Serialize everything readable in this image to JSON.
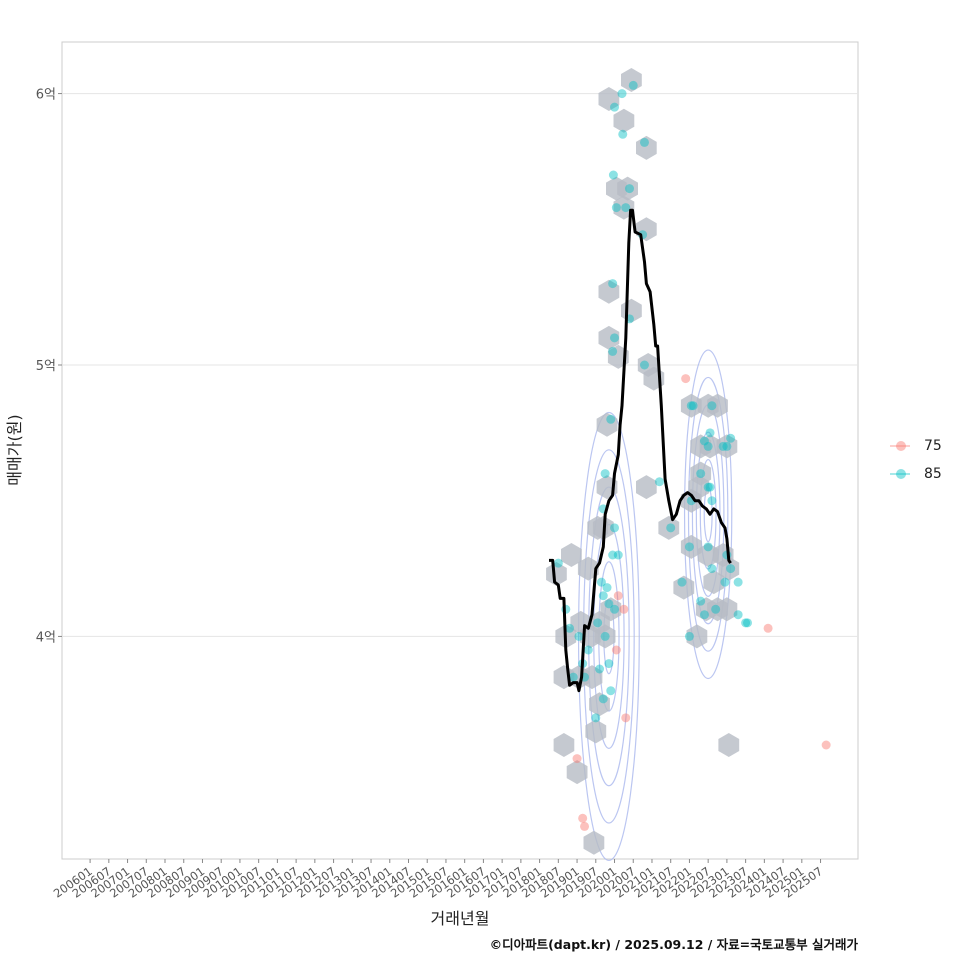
{
  "chart_data": {
    "type": "scatter",
    "title": "",
    "xlabel": "거래년월",
    "ylabel": "매매가(원)",
    "x_ticks": [
      "200601",
      "200607",
      "200701",
      "200707",
      "200801",
      "200807",
      "200901",
      "200907",
      "201001",
      "201007",
      "201101",
      "201107",
      "201201",
      "201207",
      "201301",
      "201307",
      "201401",
      "201407",
      "201501",
      "201507",
      "201601",
      "201607",
      "201701",
      "201707",
      "201801",
      "201807",
      "201901",
      "201907",
      "202001",
      "202007",
      "202101",
      "202107",
      "202201",
      "202207",
      "202301",
      "202307",
      "202401",
      "202407",
      "202501",
      "202507"
    ],
    "y_ticks": [
      {
        "value": 4.0,
        "label": "4억"
      },
      {
        "value": 5.0,
        "label": "5억"
      },
      {
        "value": 6.0,
        "label": "6억"
      }
    ],
    "xlim": [
      2005.25,
      2026.5
    ],
    "ylim": [
      3.18,
      6.19
    ],
    "grid": true,
    "legend_position": "right",
    "series": [
      {
        "name": "75",
        "color": "#f8766d",
        "points": [
          [
            2019.15,
            3.33
          ],
          [
            2019.2,
            3.3
          ],
          [
            2019.0,
            3.55
          ],
          [
            2020.3,
            3.7
          ],
          [
            2020.1,
            4.15
          ],
          [
            2020.25,
            4.1
          ],
          [
            2021.9,
            4.95
          ],
          [
            2024.1,
            4.03
          ],
          [
            2025.65,
            3.6
          ],
          [
            2020.05,
            3.95
          ]
        ]
      },
      {
        "name": "85",
        "color": "#00bfc4",
        "points": [
          [
            2018.5,
            4.27
          ],
          [
            2018.7,
            4.1
          ],
          [
            2018.8,
            4.03
          ],
          [
            2018.9,
            3.85
          ],
          [
            2019.05,
            4.0
          ],
          [
            2019.15,
            3.9
          ],
          [
            2019.2,
            3.85
          ],
          [
            2019.3,
            3.95
          ],
          [
            2019.5,
            3.7
          ],
          [
            2019.6,
            3.88
          ],
          [
            2019.7,
            3.77
          ],
          [
            2019.75,
            4.0
          ],
          [
            2019.85,
            3.9
          ],
          [
            2019.9,
            3.8
          ],
          [
            2019.55,
            4.05
          ],
          [
            2019.65,
            4.2
          ],
          [
            2019.7,
            4.15
          ],
          [
            2019.8,
            4.18
          ],
          [
            2019.85,
            4.12
          ],
          [
            2020.0,
            4.1
          ],
          [
            2019.95,
            4.3
          ],
          [
            2020.1,
            4.3
          ],
          [
            2019.7,
            4.47
          ],
          [
            2019.75,
            4.6
          ],
          [
            2020.0,
            4.4
          ],
          [
            2019.9,
            4.8
          ],
          [
            2019.95,
            5.05
          ],
          [
            2020.0,
            5.1
          ],
          [
            2019.95,
            5.3
          ],
          [
            2020.05,
            5.58
          ],
          [
            2019.97,
            5.7
          ],
          [
            2020.4,
            5.65
          ],
          [
            2020.3,
            5.58
          ],
          [
            2020.0,
            5.95
          ],
          [
            2020.2,
            6.0
          ],
          [
            2020.22,
            5.85
          ],
          [
            2020.5,
            6.03
          ],
          [
            2020.8,
            5.82
          ],
          [
            2020.75,
            5.48
          ],
          [
            2020.4,
            5.17
          ],
          [
            2020.8,
            5.0
          ],
          [
            2021.2,
            4.57
          ],
          [
            2021.5,
            4.4
          ],
          [
            2021.8,
            4.2
          ],
          [
            2022.0,
            4.33
          ],
          [
            2022.05,
            4.5
          ],
          [
            2022.05,
            4.85
          ],
          [
            2022.1,
            4.85
          ],
          [
            2022.3,
            4.6
          ],
          [
            2022.4,
            4.72
          ],
          [
            2022.5,
            4.7
          ],
          [
            2022.55,
            4.75
          ],
          [
            2022.5,
            4.55
          ],
          [
            2022.6,
            4.85
          ],
          [
            2022.3,
            4.13
          ],
          [
            2022.4,
            4.08
          ],
          [
            2022.55,
            4.55
          ],
          [
            2022.9,
            4.7
          ],
          [
            2023.0,
            4.7
          ],
          [
            2023.1,
            4.73
          ],
          [
            2023.0,
            4.3
          ],
          [
            2023.1,
            4.25
          ],
          [
            2022.95,
            4.2
          ],
          [
            2023.3,
            4.08
          ],
          [
            2023.5,
            4.05
          ],
          [
            2023.55,
            4.05
          ],
          [
            2022.0,
            4.0
          ],
          [
            2022.6,
            4.5
          ],
          [
            2022.5,
            4.33
          ],
          [
            2022.6,
            4.25
          ],
          [
            2022.7,
            4.1
          ],
          [
            2023.3,
            4.2
          ]
        ]
      }
    ],
    "hex_bins": [
      [
        2019.45,
        3.24
      ],
      [
        2018.65,
        3.6
      ],
      [
        2019.0,
        3.5
      ],
      [
        2019.5,
        3.65
      ],
      [
        2018.65,
        3.85
      ],
      [
        2019.05,
        3.85
      ],
      [
        2019.4,
        3.85
      ],
      [
        2019.6,
        3.75
      ],
      [
        2018.7,
        4.0
      ],
      [
        2019.1,
        4.05
      ],
      [
        2019.35,
        4.0
      ],
      [
        2019.6,
        4.05
      ],
      [
        2019.75,
        4.0
      ],
      [
        2019.9,
        4.1
      ],
      [
        2018.45,
        4.23
      ],
      [
        2018.85,
        4.3
      ],
      [
        2019.3,
        4.25
      ],
      [
        2019.55,
        4.4
      ],
      [
        2019.7,
        4.4
      ],
      [
        2019.8,
        4.55
      ],
      [
        2019.8,
        4.78
      ],
      [
        2019.85,
        5.1
      ],
      [
        2020.1,
        5.03
      ],
      [
        2019.85,
        5.27
      ],
      [
        2020.45,
        5.2
      ],
      [
        2020.05,
        5.65
      ],
      [
        2020.25,
        5.58
      ],
      [
        2020.35,
        5.65
      ],
      [
        2020.25,
        5.9
      ],
      [
        2019.85,
        5.98
      ],
      [
        2020.45,
        6.05
      ],
      [
        2020.85,
        5.8
      ],
      [
        2020.85,
        5.5
      ],
      [
        2020.9,
        5.0
      ],
      [
        2021.05,
        4.95
      ],
      [
        2020.85,
        4.55
      ],
      [
        2021.45,
        4.4
      ],
      [
        2021.85,
        4.18
      ],
      [
        2022.05,
        4.33
      ],
      [
        2022.05,
        4.85
      ],
      [
        2022.05,
        4.5
      ],
      [
        2022.3,
        4.6
      ],
      [
        2022.3,
        4.7
      ],
      [
        2022.5,
        4.85
      ],
      [
        2022.55,
        4.7
      ],
      [
        2022.5,
        4.3
      ],
      [
        2022.65,
        4.2
      ],
      [
        2022.45,
        4.1
      ],
      [
        2022.2,
        4.0
      ],
      [
        2022.75,
        4.85
      ],
      [
        2023.0,
        4.7
      ],
      [
        2022.9,
        4.3
      ],
      [
        2023.05,
        4.25
      ],
      [
        2023.0,
        4.1
      ],
      [
        2022.75,
        4.1
      ],
      [
        2023.05,
        3.6
      ],
      [
        2022.25,
        4.55
      ]
    ],
    "trend_line": [
      [
        2018.25,
        4.28
      ],
      [
        2018.35,
        4.28
      ],
      [
        2018.4,
        4.2
      ],
      [
        2018.5,
        4.19
      ],
      [
        2018.55,
        4.14
      ],
      [
        2018.65,
        4.14
      ],
      [
        2018.7,
        3.95
      ],
      [
        2018.75,
        3.88
      ],
      [
        2018.8,
        3.82
      ],
      [
        2018.9,
        3.83
      ],
      [
        2019.0,
        3.83
      ],
      [
        2019.05,
        3.8
      ],
      [
        2019.12,
        3.85
      ],
      [
        2019.2,
        4.04
      ],
      [
        2019.3,
        4.03
      ],
      [
        2019.4,
        4.08
      ],
      [
        2019.5,
        4.25
      ],
      [
        2019.6,
        4.27
      ],
      [
        2019.7,
        4.33
      ],
      [
        2019.75,
        4.45
      ],
      [
        2019.85,
        4.5
      ],
      [
        2019.95,
        4.52
      ],
      [
        2020.0,
        4.6
      ],
      [
        2020.1,
        4.67
      ],
      [
        2020.15,
        4.78
      ],
      [
        2020.2,
        4.85
      ],
      [
        2020.3,
        5.1
      ],
      [
        2020.38,
        5.45
      ],
      [
        2020.43,
        5.57
      ],
      [
        2020.48,
        5.57
      ],
      [
        2020.55,
        5.49
      ],
      [
        2020.7,
        5.48
      ],
      [
        2020.8,
        5.38
      ],
      [
        2020.85,
        5.3
      ],
      [
        2020.95,
        5.27
      ],
      [
        2021.05,
        5.15
      ],
      [
        2021.1,
        5.07
      ],
      [
        2021.15,
        5.07
      ],
      [
        2021.25,
        4.85
      ],
      [
        2021.35,
        4.58
      ],
      [
        2021.45,
        4.5
      ],
      [
        2021.55,
        4.43
      ],
      [
        2021.65,
        4.45
      ],
      [
        2021.75,
        4.5
      ],
      [
        2021.85,
        4.52
      ],
      [
        2021.95,
        4.53
      ],
      [
        2022.05,
        4.52
      ],
      [
        2022.15,
        4.5
      ],
      [
        2022.25,
        4.5
      ],
      [
        2022.35,
        4.48
      ],
      [
        2022.45,
        4.47
      ],
      [
        2022.55,
        4.45
      ],
      [
        2022.65,
        4.47
      ],
      [
        2022.75,
        4.46
      ],
      [
        2022.85,
        4.42
      ],
      [
        2022.95,
        4.4
      ],
      [
        2023.0,
        4.36
      ],
      [
        2023.05,
        4.28
      ],
      [
        2023.1,
        4.27
      ]
    ]
  },
  "credit": "©디아파트(dapt.kr) / 2025.09.12 / 자료=국토교통부 실거래가"
}
